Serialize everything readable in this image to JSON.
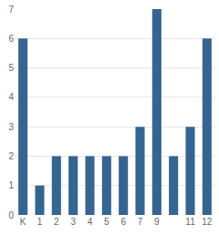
{
  "chart_data": {
    "type": "bar",
    "categories": [
      "K",
      "1",
      "2",
      "3",
      "4",
      "5",
      "6",
      "7",
      "9",
      null,
      "11",
      "12"
    ],
    "values": [
      6,
      1,
      2,
      2,
      2,
      2,
      2,
      3,
      7,
      2,
      3,
      6
    ],
    "color": "#356590",
    "ylim": [
      0,
      7
    ],
    "yticks": [
      0,
      1,
      2,
      3,
      4,
      5,
      6,
      7
    ],
    "grid": true
  }
}
